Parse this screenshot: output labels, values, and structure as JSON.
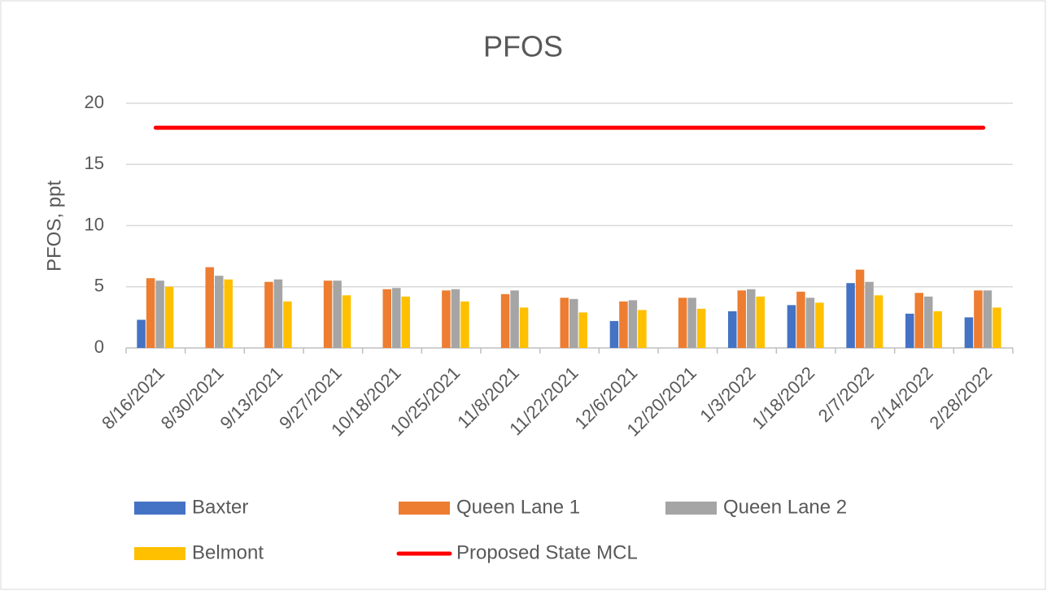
{
  "chart_data": {
    "type": "bar",
    "title": "PFOS",
    "y_label": "PFOS, ppt",
    "categories": [
      "8/16/2021",
      "8/30/2021",
      "9/13/2021",
      "9/27/2021",
      "10/18/2021",
      "10/25/2021",
      "11/8/2021",
      "11/22/2021",
      "12/6/2021",
      "12/20/2021",
      "1/3/2022",
      "1/18/2022",
      "2/7/2022",
      "2/14/2022",
      "2/28/2022"
    ],
    "series": [
      {
        "name": "Baxter",
        "color": "#4472c4",
        "type": "bar",
        "values": [
          2.3,
          null,
          null,
          null,
          null,
          null,
          null,
          null,
          2.2,
          null,
          3.0,
          3.5,
          5.3,
          2.8,
          2.5
        ]
      },
      {
        "name": "Queen Lane 1",
        "color": "#ed7d31",
        "type": "bar",
        "values": [
          5.7,
          6.6,
          5.4,
          5.5,
          4.8,
          4.7,
          4.4,
          4.1,
          3.8,
          4.1,
          4.7,
          4.6,
          6.4,
          4.5,
          4.7
        ]
      },
      {
        "name": "Queen Lane 2",
        "color": "#a5a5a5",
        "type": "bar",
        "values": [
          5.5,
          5.9,
          5.6,
          5.5,
          4.9,
          4.8,
          4.7,
          4.0,
          3.9,
          4.1,
          4.8,
          4.1,
          5.4,
          4.2,
          4.7
        ]
      },
      {
        "name": "Belmont",
        "color": "#ffc000",
        "type": "bar",
        "values": [
          5.0,
          5.6,
          3.8,
          4.3,
          4.2,
          3.8,
          3.3,
          2.9,
          3.1,
          3.2,
          4.2,
          3.7,
          4.3,
          3.0,
          3.3
        ]
      },
      {
        "name": "Proposed State MCL",
        "color": "#ff0000",
        "type": "line",
        "values": [
          18,
          18,
          18,
          18,
          18,
          18,
          18,
          18,
          18,
          18,
          18,
          18,
          18,
          18,
          18
        ]
      }
    ],
    "ylim": [
      0,
      20
    ],
    "yticks": [
      0,
      5,
      10,
      15,
      20
    ],
    "grid": true
  }
}
